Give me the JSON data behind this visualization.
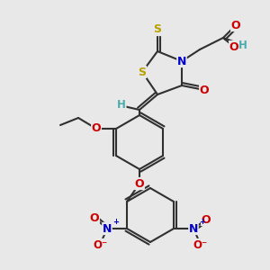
{
  "bg_color": "#e8e8e8",
  "bond_color": "#303030",
  "atom_colors": {
    "S": "#b8a000",
    "N": "#0000cc",
    "O": "#cc0000",
    "H": "#4aacac",
    "C": "#303030"
  },
  "figsize": [
    3.0,
    3.0
  ],
  "dpi": 100
}
